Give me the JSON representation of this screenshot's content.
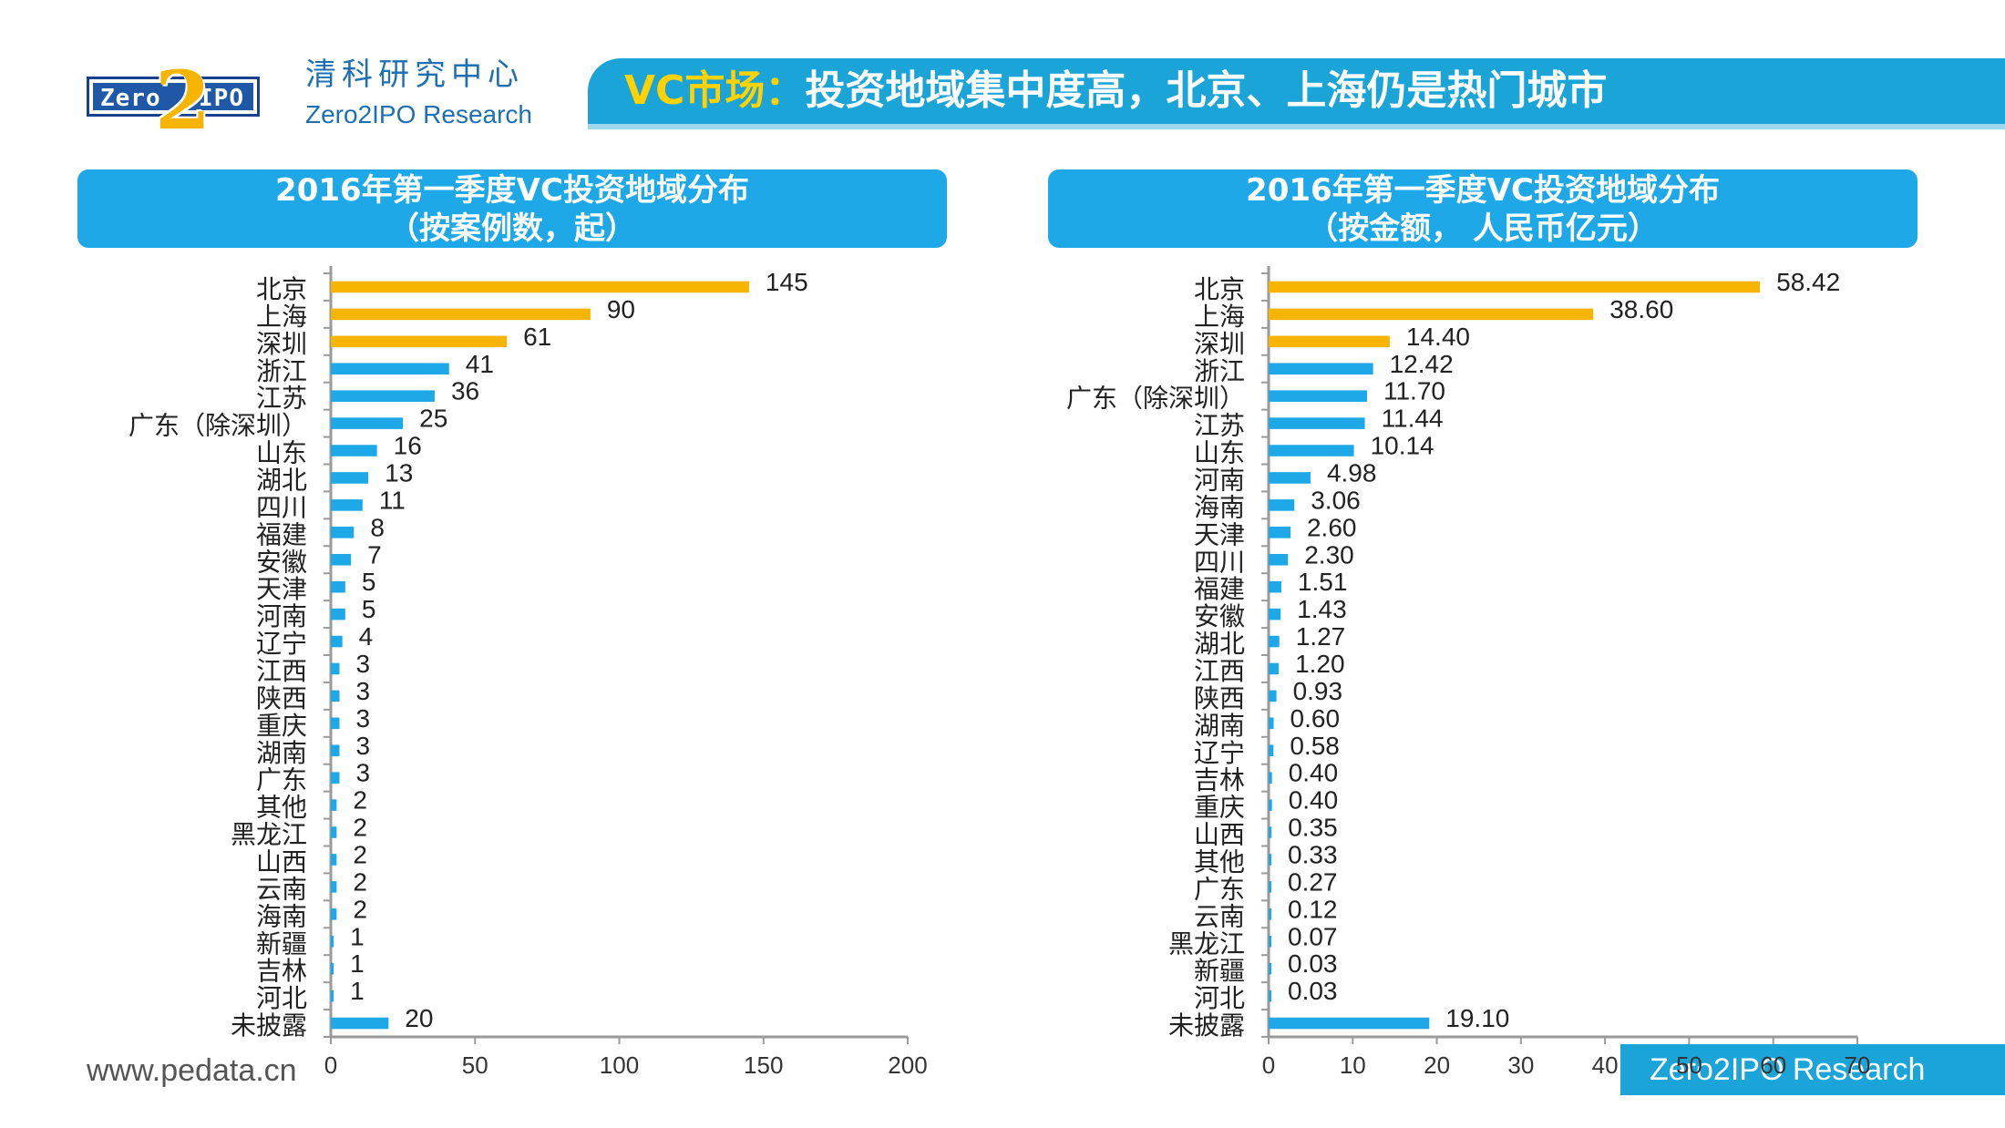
{
  "header": {
    "logo_left": "Zero",
    "logo_two": "2",
    "logo_right": "IPO",
    "brand_cn": "清科研究中心",
    "brand_en": "Zero2IPO Research",
    "title_accent": "VC市场：",
    "title_rest": "投资地域集中度高，北京、上海仍是热门城市"
  },
  "footer": {
    "url": "www.pedata.cn",
    "brand": "Zero2IPO Research"
  },
  "colors": {
    "highlight": "#f7b500",
    "bar": "#1fa8e8",
    "title_band": "#1ba4d8",
    "brand_text": "#1f6fb5"
  },
  "chart_data": [
    {
      "type": "bar",
      "orientation": "horizontal",
      "title": "2016年第一季度VC投资地域分布",
      "subtitle": "（按案例数，起）",
      "categories": [
        "北京",
        "上海",
        "深圳",
        "浙江",
        "江苏",
        "广东（除深圳）",
        "山东",
        "湖北",
        "四川",
        "福建",
        "安徽",
        "天津",
        "河南",
        "辽宁",
        "江西",
        "陕西",
        "重庆",
        "湖南",
        "广东",
        "其他",
        "黑龙江",
        "山西",
        "云南",
        "海南",
        "新疆",
        "吉林",
        "河北",
        "未披露"
      ],
      "values": [
        145,
        90,
        61,
        41,
        36,
        25,
        16,
        13,
        11,
        8,
        7,
        5,
        5,
        4,
        3,
        3,
        3,
        3,
        3,
        2,
        2,
        2,
        2,
        2,
        1,
        1,
        1,
        20
      ],
      "value_labels": [
        "145",
        "90",
        "61",
        "41",
        "36",
        "25",
        "16",
        "13",
        "11",
        "8",
        "7",
        "5",
        "5",
        "4",
        "3",
        "3",
        "3",
        "3",
        "3",
        "2",
        "2",
        "2",
        "2",
        "2",
        "1",
        "1",
        "1",
        "20"
      ],
      "highlight_count": 3,
      "xlim": [
        0,
        200
      ],
      "xticks": [
        "0",
        "50",
        "100",
        "150",
        "200"
      ],
      "grid": false
    },
    {
      "type": "bar",
      "orientation": "horizontal",
      "title": "2016年第一季度VC投资地域分布",
      "subtitle": "（按金额， 人民币亿元）",
      "categories": [
        "北京",
        "上海",
        "深圳",
        "浙江",
        "广东（除深圳）",
        "江苏",
        "山东",
        "河南",
        "海南",
        "天津",
        "四川",
        "福建",
        "安徽",
        "湖北",
        "江西",
        "陕西",
        "湖南",
        "辽宁",
        "吉林",
        "重庆",
        "山西",
        "其他",
        "广东",
        "云南",
        "黑龙江",
        "新疆",
        "河北",
        "未披露"
      ],
      "values": [
        58.42,
        38.6,
        14.4,
        12.42,
        11.7,
        11.44,
        10.14,
        4.98,
        3.06,
        2.6,
        2.3,
        1.51,
        1.43,
        1.27,
        1.2,
        0.93,
        0.6,
        0.58,
        0.4,
        0.4,
        0.35,
        0.33,
        0.27,
        0.12,
        0.07,
        0.03,
        0.03,
        19.1
      ],
      "value_labels": [
        "58.42",
        "38.60",
        "14.40",
        "12.42",
        "11.70",
        "11.44",
        "10.14",
        "4.98",
        "3.06",
        "2.60",
        "2.30",
        "1.51",
        "1.43",
        "1.27",
        "1.20",
        "0.93",
        "0.60",
        "0.58",
        "0.40",
        "0.40",
        "0.35",
        "0.33",
        "0.27",
        "0.12",
        "0.07",
        "0.03",
        "0.03",
        "19.10"
      ],
      "highlight_count": 3,
      "xlim": [
        0,
        70
      ],
      "xticks": [
        "0",
        "10",
        "20",
        "30",
        "40",
        "50",
        "60",
        "70"
      ],
      "grid": false
    }
  ]
}
